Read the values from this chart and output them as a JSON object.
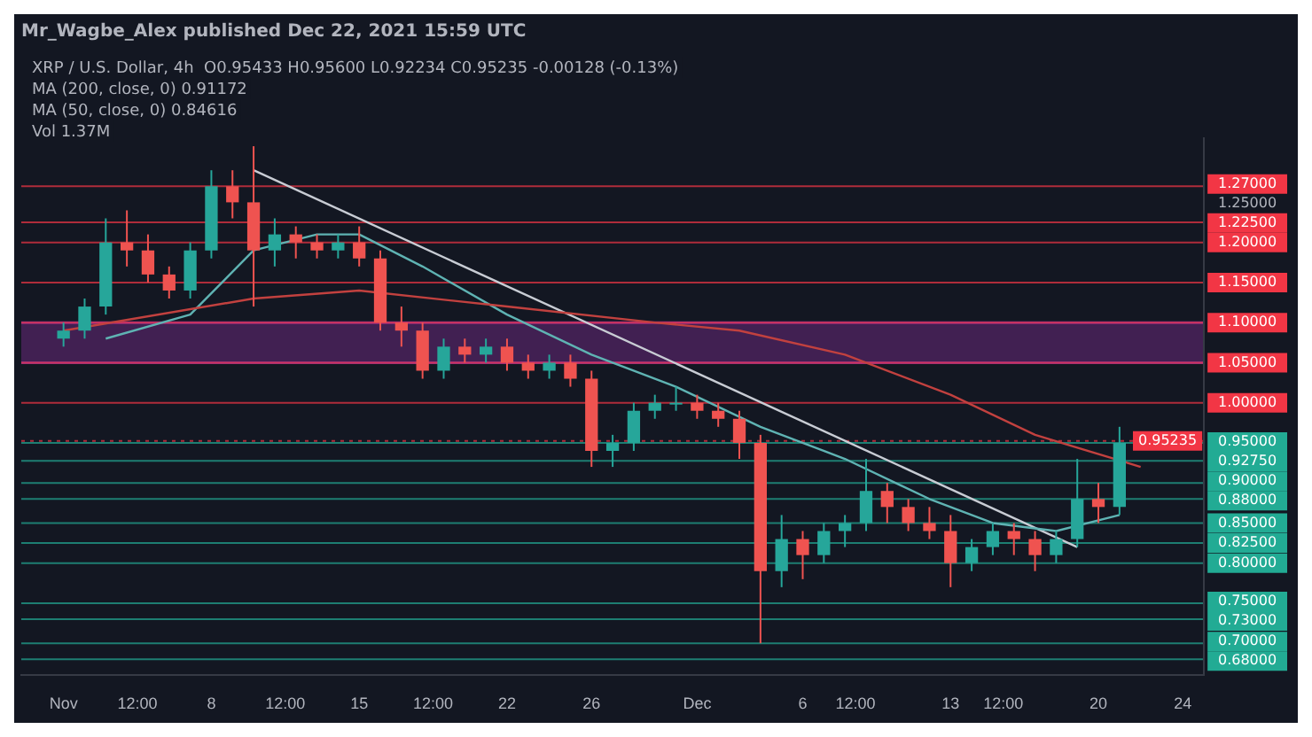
{
  "chart_data": {
    "type": "candlestick",
    "title": "Mr_Wagbe_Alex published Dec 22, 2021 15:59 UTC",
    "annotations": [
      "XRP / U.S. Dollar, 4h  O0.95433 H0.95600 L0.92234 C0.95235 -0.00128 (-0.13%)",
      "MA (200, close, 0) 0.91172",
      "MA (50, close, 0) 0.84616",
      "Vol 1.37M"
    ],
    "x": [
      "2021-11-01",
      "2021-11-02",
      "2021-11-03",
      "2021-11-04",
      "2021-11-05",
      "2021-11-06",
      "2021-11-07",
      "2021-11-08",
      "2021-11-09",
      "2021-11-10",
      "2021-11-11",
      "2021-11-12",
      "2021-11-13",
      "2021-11-14",
      "2021-11-15",
      "2021-11-16",
      "2021-11-17",
      "2021-11-18",
      "2021-11-19",
      "2021-11-20",
      "2021-11-21",
      "2021-11-22",
      "2021-11-23",
      "2021-11-24",
      "2021-11-25",
      "2021-11-26",
      "2021-11-27",
      "2021-11-28",
      "2021-11-29",
      "2021-11-30",
      "2021-12-01",
      "2021-12-02",
      "2021-12-03",
      "2021-12-04",
      "2021-12-05",
      "2021-12-06",
      "2021-12-07",
      "2021-12-08",
      "2021-12-09",
      "2021-12-10",
      "2021-12-11",
      "2021-12-12",
      "2021-12-13",
      "2021-12-14",
      "2021-12-15",
      "2021-12-16",
      "2021-12-17",
      "2021-12-18",
      "2021-12-19",
      "2021-12-20",
      "2021-12-21"
    ],
    "ohlc": [
      [
        1.08,
        1.1,
        1.07,
        1.09
      ],
      [
        1.09,
        1.13,
        1.08,
        1.12
      ],
      [
        1.12,
        1.23,
        1.11,
        1.2
      ],
      [
        1.2,
        1.24,
        1.17,
        1.19
      ],
      [
        1.19,
        1.21,
        1.15,
        1.16
      ],
      [
        1.16,
        1.17,
        1.13,
        1.14
      ],
      [
        1.14,
        1.2,
        1.13,
        1.19
      ],
      [
        1.19,
        1.29,
        1.18,
        1.27
      ],
      [
        1.27,
        1.29,
        1.23,
        1.25
      ],
      [
        1.25,
        1.32,
        1.12,
        1.19
      ],
      [
        1.19,
        1.23,
        1.17,
        1.21
      ],
      [
        1.21,
        1.22,
        1.18,
        1.2
      ],
      [
        1.2,
        1.21,
        1.18,
        1.19
      ],
      [
        1.19,
        1.21,
        1.18,
        1.2
      ],
      [
        1.2,
        1.22,
        1.17,
        1.18
      ],
      [
        1.18,
        1.19,
        1.09,
        1.1
      ],
      [
        1.1,
        1.12,
        1.07,
        1.09
      ],
      [
        1.09,
        1.1,
        1.03,
        1.04
      ],
      [
        1.04,
        1.08,
        1.03,
        1.07
      ],
      [
        1.07,
        1.08,
        1.05,
        1.06
      ],
      [
        1.06,
        1.08,
        1.05,
        1.07
      ],
      [
        1.07,
        1.08,
        1.04,
        1.05
      ],
      [
        1.05,
        1.06,
        1.03,
        1.04
      ],
      [
        1.04,
        1.06,
        1.03,
        1.05
      ],
      [
        1.05,
        1.06,
        1.02,
        1.03
      ],
      [
        1.03,
        1.04,
        0.92,
        0.94
      ],
      [
        0.94,
        0.96,
        0.92,
        0.95
      ],
      [
        0.95,
        1.0,
        0.94,
        0.99
      ],
      [
        0.99,
        1.01,
        0.98,
        1.0
      ],
      [
        1.0,
        1.02,
        0.99,
        1.0
      ],
      [
        1.0,
        1.01,
        0.98,
        0.99
      ],
      [
        0.99,
        1.0,
        0.97,
        0.98
      ],
      [
        0.98,
        0.99,
        0.93,
        0.95
      ],
      [
        0.95,
        0.96,
        0.7,
        0.79
      ],
      [
        0.79,
        0.86,
        0.77,
        0.83
      ],
      [
        0.83,
        0.84,
        0.78,
        0.81
      ],
      [
        0.81,
        0.85,
        0.8,
        0.84
      ],
      [
        0.84,
        0.86,
        0.82,
        0.85
      ],
      [
        0.85,
        0.93,
        0.84,
        0.89
      ],
      [
        0.89,
        0.9,
        0.85,
        0.87
      ],
      [
        0.87,
        0.88,
        0.84,
        0.85
      ],
      [
        0.85,
        0.87,
        0.83,
        0.84
      ],
      [
        0.84,
        0.86,
        0.77,
        0.8
      ],
      [
        0.8,
        0.83,
        0.79,
        0.82
      ],
      [
        0.82,
        0.85,
        0.81,
        0.84
      ],
      [
        0.84,
        0.85,
        0.81,
        0.83
      ],
      [
        0.83,
        0.84,
        0.79,
        0.81
      ],
      [
        0.81,
        0.84,
        0.8,
        0.83
      ],
      [
        0.83,
        0.93,
        0.82,
        0.88
      ],
      [
        0.88,
        0.9,
        0.85,
        0.87
      ],
      [
        0.87,
        0.97,
        0.86,
        0.95
      ]
    ],
    "series": [
      {
        "type": "line",
        "color": "#c2413f",
        "x": [
          "2021-11-01",
          "2021-11-10",
          "2021-11-15",
          "2021-11-22",
          "2021-11-29",
          "2021-12-03",
          "2021-12-08",
          "2021-12-13",
          "2021-12-17",
          "2021-12-22"
        ],
        "values": [
          1.09,
          1.13,
          1.14,
          1.12,
          1.1,
          1.09,
          1.06,
          1.01,
          0.96,
          0.92
        ]
      },
      {
        "type": "line",
        "color": "#5fb3b3",
        "x": [
          "2021-11-03",
          "2021-11-07",
          "2021-11-10",
          "2021-11-13",
          "2021-11-15",
          "2021-11-18",
          "2021-11-22",
          "2021-11-26",
          "2021-11-30",
          "2021-12-04",
          "2021-12-08",
          "2021-12-12",
          "2021-12-15",
          "2021-12-18",
          "2021-12-21"
        ],
        "values": [
          1.08,
          1.11,
          1.19,
          1.21,
          1.21,
          1.17,
          1.11,
          1.06,
          1.02,
          0.97,
          0.93,
          0.88,
          0.85,
          0.84,
          0.86
        ]
      },
      {
        "type": "line",
        "color": "#c8ccd4",
        "x": [
          "2021-11-10",
          "2021-12-19"
        ],
        "values": [
          1.29,
          0.82
        ]
      }
    ],
    "xlim": [
      "2021-10-30",
      "2021-12-25"
    ],
    "xticks": [
      {
        "value": "2021-11-01",
        "label": "Nov"
      },
      {
        "value": "2021-11-04T12:00",
        "label": "12:00"
      },
      {
        "value": "2021-11-08",
        "label": "8"
      },
      {
        "value": "2021-11-11T12:00",
        "label": "12:00"
      },
      {
        "value": "2021-11-15",
        "label": "15"
      },
      {
        "value": "2021-11-18T12:00",
        "label": "12:00"
      },
      {
        "value": "2021-11-22",
        "label": "22"
      },
      {
        "value": "2021-11-26",
        "label": "26"
      },
      {
        "value": "2021-12-01",
        "label": "Dec"
      },
      {
        "value": "2021-12-06",
        "label": "6"
      },
      {
        "value": "2021-12-08T12:00",
        "label": "12:00"
      },
      {
        "value": "2021-12-13",
        "label": "13"
      },
      {
        "value": "2021-12-15T12:00",
        "label": "12:00"
      },
      {
        "value": "2021-12-20",
        "label": "20"
      },
      {
        "value": "2021-12-24",
        "label": "24"
      }
    ],
    "ylim": [
      0.66,
      1.33
    ],
    "yticks": [
      {
        "value": 1.27,
        "label": "1.27000"
      },
      {
        "value": 1.25,
        "label": "1.25000"
      },
      {
        "value": 1.225,
        "label": "1.22500"
      },
      {
        "value": 1.2,
        "label": "1.20000"
      },
      {
        "value": 1.15,
        "label": "1.15000"
      },
      {
        "value": 1.1,
        "label": "1.10000"
      },
      {
        "value": 1.05,
        "label": "1.05000"
      },
      {
        "value": 1.0,
        "label": "1.00000"
      },
      {
        "value": 0.95,
        "label": "0.95000"
      },
      {
        "value": 0.9275,
        "label": "0.92750"
      },
      {
        "value": 0.9,
        "label": "0.90000"
      },
      {
        "value": 0.88,
        "label": "0.88000"
      },
      {
        "value": 0.85,
        "label": "0.85000"
      },
      {
        "value": 0.825,
        "label": "0.82500"
      },
      {
        "value": 0.8,
        "label": "0.80000"
      },
      {
        "value": 0.75,
        "label": "0.75000"
      },
      {
        "value": 0.73,
        "label": "0.73000"
      },
      {
        "value": 0.7,
        "label": "0.70000"
      },
      {
        "value": 0.68,
        "label": "0.68000"
      }
    ],
    "ref_lines": [
      {
        "axis": "y",
        "value": 1.27,
        "color": "#f23645"
      },
      {
        "axis": "y",
        "value": 1.225,
        "color": "#f23645"
      },
      {
        "axis": "y",
        "value": 1.2,
        "color": "#f23645"
      },
      {
        "axis": "y",
        "value": 1.15,
        "color": "#f23645"
      },
      {
        "axis": "y",
        "value": 1.1,
        "color": "#f23645"
      },
      {
        "axis": "y",
        "value": 1.05,
        "color": "#f23645"
      },
      {
        "axis": "y",
        "value": 1.0,
        "color": "#f23645"
      },
      {
        "axis": "y",
        "value": 0.95235,
        "label": "0.95235",
        "color": "#f23645",
        "line_style": "dotted"
      },
      {
        "axis": "y",
        "value": 0.95,
        "color": "#22ab94"
      },
      {
        "axis": "y",
        "value": 0.9275,
        "color": "#22ab94"
      },
      {
        "axis": "y",
        "value": 0.9,
        "color": "#22ab94"
      },
      {
        "axis": "y",
        "value": 0.88,
        "color": "#22ab94"
      },
      {
        "axis": "y",
        "value": 0.85,
        "color": "#22ab94"
      },
      {
        "axis": "y",
        "value": 0.825,
        "color": "#22ab94"
      },
      {
        "axis": "y",
        "value": 0.8,
        "color": "#22ab94"
      },
      {
        "axis": "y",
        "value": 0.75,
        "color": "#22ab94"
      },
      {
        "axis": "y",
        "value": 0.73,
        "color": "#22ab94"
      },
      {
        "axis": "y",
        "value": 0.7,
        "color": "#22ab94"
      },
      {
        "axis": "y",
        "value": 0.68,
        "color": "#22ab94"
      }
    ],
    "bands": [
      {
        "axis": "y",
        "from": 1.05,
        "to": 1.1,
        "color": "#7b2d8e"
      }
    ]
  }
}
